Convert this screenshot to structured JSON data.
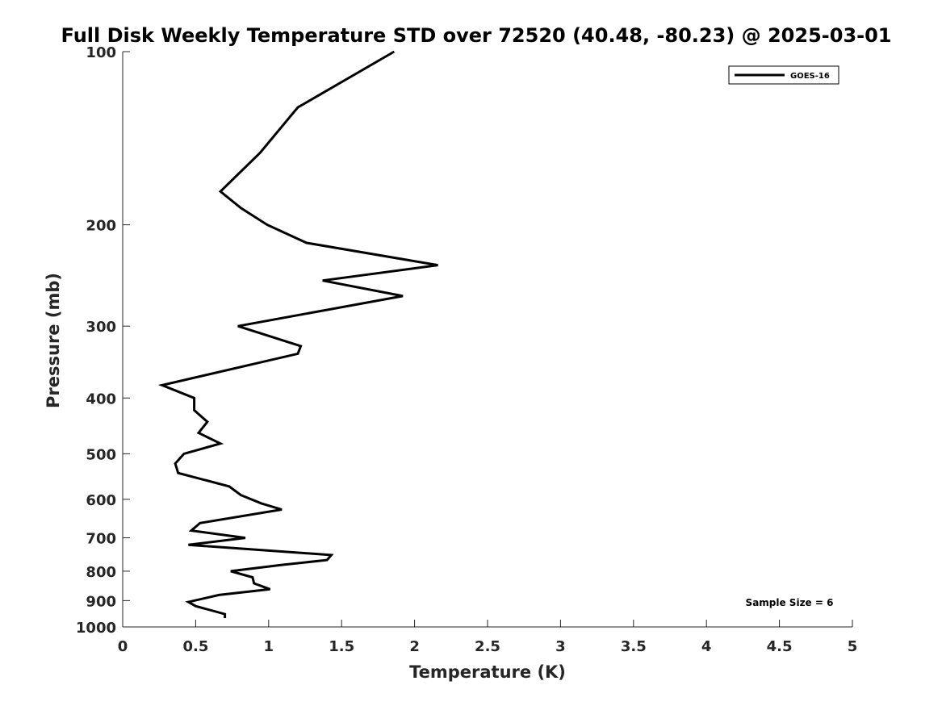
{
  "chart_data": {
    "type": "line",
    "title": "Full Disk Weekly Temperature STD over 72520 (40.48, -80.23) @ 2025-03-01",
    "xlabel": "Temperature (K)",
    "ylabel": "Pressure (mb)",
    "xlim": [
      0,
      5
    ],
    "ylim": [
      100,
      1000
    ],
    "y_scale": "log",
    "y_reversed": true,
    "x_ticks": [
      "0",
      "0.5",
      "1",
      "1.5",
      "2",
      "2.5",
      "3",
      "3.5",
      "4",
      "4.5",
      "5"
    ],
    "y_ticks": [
      "100",
      "200",
      "300",
      "400",
      "500",
      "600",
      "700",
      "800",
      "900",
      "1000"
    ],
    "grid": false,
    "legend_position": "top-right",
    "series": [
      {
        "name": "GOES-16",
        "color": "#000000",
        "points": [
          [
            1.86,
            100
          ],
          [
            1.2,
            125
          ],
          [
            0.94,
            150
          ],
          [
            0.67,
            175
          ],
          [
            0.81,
            187
          ],
          [
            0.99,
            200
          ],
          [
            1.26,
            215
          ],
          [
            2.16,
            235
          ],
          [
            1.37,
            250
          ],
          [
            1.92,
            266
          ],
          [
            0.79,
            300
          ],
          [
            1.22,
            325
          ],
          [
            1.2,
            335
          ],
          [
            0.27,
            380
          ],
          [
            0.49,
            400
          ],
          [
            0.49,
            420
          ],
          [
            0.58,
            440
          ],
          [
            0.52,
            460
          ],
          [
            0.67,
            480
          ],
          [
            0.42,
            500
          ],
          [
            0.36,
            520
          ],
          [
            0.38,
            540
          ],
          [
            0.73,
            570
          ],
          [
            0.81,
            590
          ],
          [
            0.95,
            610
          ],
          [
            1.09,
            625
          ],
          [
            0.53,
            660
          ],
          [
            0.47,
            680
          ],
          [
            0.84,
            700
          ],
          [
            0.45,
            720
          ],
          [
            1.43,
            750
          ],
          [
            1.4,
            765
          ],
          [
            1.09,
            780
          ],
          [
            0.74,
            800
          ],
          [
            0.89,
            820
          ],
          [
            0.9,
            840
          ],
          [
            1.01,
            860
          ],
          [
            0.66,
            880
          ],
          [
            0.45,
            905
          ],
          [
            0.5,
            920
          ],
          [
            0.7,
            950
          ],
          [
            0.7,
            965
          ]
        ]
      }
    ],
    "annotations": [
      {
        "text": "Sample Size = 6",
        "position": "bottom-right"
      }
    ]
  }
}
